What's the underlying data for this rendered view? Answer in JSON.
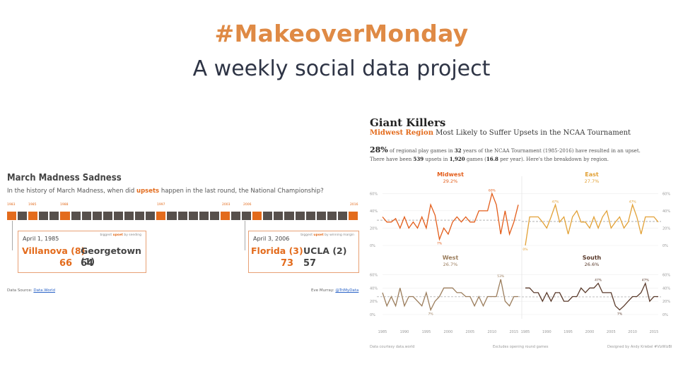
{
  "header": {
    "title": "#MakeoverMonday",
    "subtitle": "A weekly social data project",
    "title_color": "#df8a45"
  },
  "left_viz": {
    "title": "March Madness Sadness",
    "subtitle_pre": "In the history of March Madness, when did ",
    "subtitle_highlight": "upsets",
    "subtitle_post": " happen in the last round, the National Championship?",
    "year_labels": [
      "1983",
      "1985",
      "1988",
      "1997",
      "2003",
      "2006",
      "2016"
    ],
    "squares": [
      1,
      0,
      1,
      0,
      0,
      1,
      0,
      0,
      0,
      0,
      0,
      0,
      0,
      0,
      1,
      0,
      0,
      0,
      0,
      0,
      1,
      0,
      0,
      1,
      0,
      0,
      0,
      0,
      0,
      0,
      0,
      0,
      1
    ],
    "upset_color": "#e36b1c",
    "normal_color": "#57504c",
    "games": [
      {
        "date": "April 1, 1985",
        "note_pre": "biggest ",
        "note_hl": "upset",
        "note_post": " by seeding",
        "winner": "Villanova (8)",
        "loser": "Georgetown (1)",
        "winner_score": "66",
        "loser_score": "64"
      },
      {
        "date": "April 3, 2006",
        "note_pre": "biggest ",
        "note_hl": "upset",
        "note_post": " by winning margin",
        "winner": "Florida (3)",
        "loser": "UCLA (2)",
        "winner_score": "73",
        "loser_score": "57"
      }
    ],
    "footer_source_label": "Data Source: ",
    "footer_source_link": "Data.World",
    "footer_author_label": "Eve Murray: ",
    "footer_author_link": "@TriMyData"
  },
  "right_viz": {
    "title": "Giant Killers",
    "subtitle_region": "Midwest Region",
    "subtitle_rest": " Most Likely to Suffer Upsets in the NCAA Tournament",
    "desc_pct": "28%",
    "desc_1a": " of regional play games in ",
    "desc_years": "32",
    "desc_1b": " years of the NCAA Tournament (1985-2016) have resulted in an upset.",
    "desc_2a": "There have been ",
    "desc_upsets": "539",
    "desc_2b": " upsets in ",
    "desc_games": "1,920",
    "desc_2c": " games (",
    "desc_peryear": "16.8",
    "desc_2d": " per year). Here's the breakdown by region.",
    "footer_left": "Data courtesy data.world",
    "footer_mid": "Excludes opening round games",
    "footer_right": "Designed by Andy Kriebel #VizWizBI"
  },
  "chart_data": {
    "type": "line",
    "y_ticks": [
      "60%",
      "40%",
      "20%",
      "0%"
    ],
    "x_ticks": [
      "1985",
      "1990",
      "1995",
      "2000",
      "2005",
      "2010",
      "2015"
    ],
    "ylim": [
      0,
      70
    ],
    "panels": [
      {
        "name": "Midwest",
        "avg": "29.2%",
        "color": "#e35d1a",
        "values": [
          33,
          27,
          27,
          31,
          20,
          33,
          20,
          27,
          20,
          33,
          20,
          47,
          35,
          7,
          20,
          13,
          27,
          33,
          27,
          33,
          27,
          27,
          40,
          40,
          40,
          60,
          47,
          13,
          40,
          13,
          27,
          47
        ],
        "annotations": [
          {
            "label": "60%",
            "year": 2010
          },
          {
            "label": "7%",
            "year": 1998
          }
        ]
      },
      {
        "name": "East",
        "avg": "27.7%",
        "color": "#e2a136",
        "values": [
          0,
          33,
          33,
          33,
          27,
          20,
          33,
          47,
          27,
          33,
          13,
          33,
          40,
          27,
          27,
          20,
          33,
          20,
          33,
          40,
          20,
          27,
          33,
          20,
          27,
          47,
          33,
          13,
          33,
          33,
          33,
          27
        ],
        "annotations": [
          {
            "label": "47%",
            "year": 1992
          },
          {
            "label": "47%",
            "year": 2010
          },
          {
            "label": "0%",
            "year": 1985
          }
        ]
      },
      {
        "name": "West",
        "avg": "26.7%",
        "color": "#9b7d5c",
        "values": [
          33,
          13,
          27,
          13,
          40,
          13,
          27,
          27,
          20,
          13,
          33,
          7,
          20,
          27,
          40,
          40,
          40,
          33,
          33,
          27,
          27,
          13,
          27,
          13,
          27,
          27,
          27,
          53,
          20,
          13,
          27,
          27
        ],
        "annotations": [
          {
            "label": "53%",
            "year": 2012
          },
          {
            "label": "7%",
            "year": 1996
          }
        ]
      },
      {
        "name": "South",
        "avg": "26.6%",
        "color": "#5a3a2b",
        "values": [
          40,
          40,
          33,
          33,
          20,
          33,
          20,
          33,
          33,
          20,
          20,
          27,
          27,
          40,
          33,
          40,
          40,
          47,
          33,
          33,
          33,
          13,
          7,
          13,
          20,
          27,
          27,
          33,
          47,
          20,
          27,
          27
        ],
        "annotations": [
          {
            "label": "47%",
            "year": 2002
          },
          {
            "label": "47%",
            "year": 2013
          },
          {
            "label": "7%",
            "year": 2007
          }
        ]
      }
    ]
  }
}
